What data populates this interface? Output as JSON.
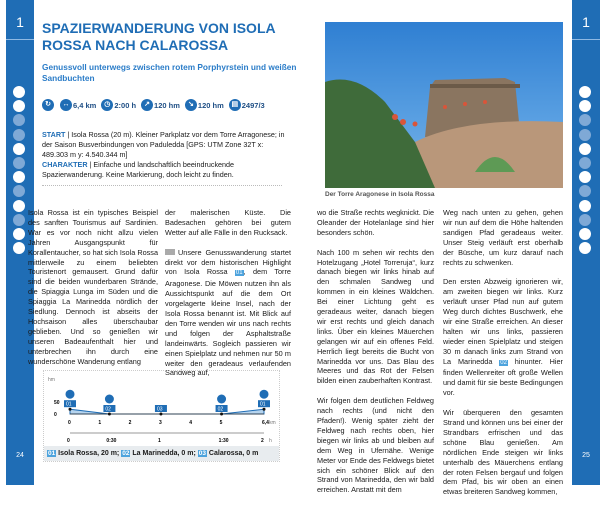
{
  "tour_number": "1",
  "page_left": "24",
  "page_right": "25",
  "colors": {
    "brand": "#1f6db5",
    "accent": "#4da3dd"
  },
  "feature_icons": [
    {
      "name": "child-friendly-icon",
      "active": true
    },
    {
      "name": "parking-icon",
      "active": true
    },
    {
      "name": "bus-icon",
      "active": false
    },
    {
      "name": "cable-car-icon",
      "active": false
    },
    {
      "name": "restaurant-icon",
      "active": true
    },
    {
      "name": "hut-icon",
      "active": false
    },
    {
      "name": "winter-icon",
      "active": true
    },
    {
      "name": "dog-icon",
      "active": false
    },
    {
      "name": "closed-road-icon",
      "active": true
    },
    {
      "name": "trash-icon",
      "active": false
    },
    {
      "name": "water-icon",
      "active": true
    },
    {
      "name": "swimming-icon",
      "active": true
    }
  ],
  "title": "SPAZIERWANDERUNG VON ISOLA ROSSA NACH CALAROSSA",
  "subtitle": "Genussvoll unterwegs zwischen rotem Porphyrstein und weißen Sandbuchten",
  "stats": [
    {
      "icon": "loop-icon",
      "value": ""
    },
    {
      "icon": "distance-icon",
      "value": "6,4 km"
    },
    {
      "icon": "clock-icon",
      "value": "2:00 h"
    },
    {
      "icon": "ascent-icon",
      "value": "120 hm"
    },
    {
      "icon": "descent-icon",
      "value": "120 hm"
    },
    {
      "icon": "map-icon",
      "value": "2497/3"
    }
  ],
  "info": {
    "start_label": "START",
    "start_text": " | Isola Rossa (20 m). Kleiner Parkplatz vor dem Torre Arragonese; in der Saison Busverbindungen von Paduledda [GPS: UTM Zone 32T x: 489.303 m y: 4.540.344 m]",
    "char_label": "CHARAKTER",
    "char_text": " | Einfache und landschaftlich beeindruckende Spazierwanderung. Keine Markierung, doch leicht zu finden."
  },
  "text": {
    "l1": "Isola Rossa ist ein typisches Beispiel des sanften Tourismus auf Sardinien. War es vor noch nicht allzu vielen Jahren Ausgangspunkt für Korallentaucher, so hat sich Isola Rossa mittlerweile zu einem beliebten Touristenort gemausert. Grund dafür sind die beiden wunderbaren Strände, die Spiaggia Lunga im Süden und die Spiaggia La Marinedda nördlich der Siedlung. Dennoch ist abseits der Hochsaison alles überschaubar geblieben. Und so genießen wir unseren Badeaufenthalt hier und unterbrechen ihn durch eine wunderschöne Wanderung entlang",
    "l2a": "der malerischen Küste. Die Badesachen gehören bei gutem Wetter auf alle Fälle in den Rucksack.",
    "l2b_1": "Unsere Genusswanderung startet direkt vor dem historischen Highlight von Isola Rossa ",
    "l2b_wp": "01",
    "l2b_2": ", dem Torre Aragonese. Die Möwen nutzen ihn als Aussichtspunkt auf die dem Ort vorgelagerte kleine Insel, nach der Isola Rossa benannt ist. Mit Blick auf den Torre wenden wir uns nach rechts und folgen der Asphaltstraße landeinwärts. Sogleich passieren wir einen Spielplatz und nehmen nur 50 m weiter den geradeaus verlaufenden Sandweg auf,",
    "r1a": "wo die Straße rechts wegknickt. Die Oleander der Hotelanlage sind hier besonders schön.",
    "r1b": "Nach 100 m sehen wir rechts den Hotelzugang „Hotel Torreruja“, kurz danach biegen wir links hinab auf den schmalen Sandweg und kommen in ein kleines Wäldchen. Bei einer Lichtung geht es geradeaus weiter, danach biegen wir erst rechts und gleich danach links. Über ein kleines Mäuerchen gelangen wir auf ein offenes Feld. Herrlich liegt bereits die Bucht von Marinedda vor uns. Das Blau des Meeres und das Rot der Felsen bilden einen zauberhaften Kontrast.",
    "r1c": "Wir folgen dem deutlichen Feldweg nach rechts (und nicht den Pfaden!). Wenig später zieht der Feldweg nach rechts oben, hier biegen wir links ab und bleiben auf dem Weg in Ufernähe. Wenige Meter vor Ende des Feldwegs bietet sich ein schöner Blick auf den Strand von Marinedda, den wir bald erreichen. Anstatt mit dem",
    "r2a": "Weg nach unten zu gehen, gehen wir nun auf dem die Höhe haltenden sandigen Pfad geradeaus weiter. Unser Steig verläuft erst oberhalb der Büsche, um kurz darauf nach rechts zu schwenken.",
    "r2b_1": "Den ersten Abzweig ignorieren wir, am zweiten biegen wir links. Kurz verläuft unser Pfad nun auf gutem Weg durch dichtes Buschwerk, ehe wir eine Straße erreichen. An dieser halten wir uns links, passieren wieder einen Spielplatz und steigen 30 m danach links zum Strand von La Marinedda ",
    "r2b_wp": "02",
    "r2b_2": " hinunter. Hier finden Wellenreiter oft große Wellen und damit für sie beste Bedingungen vor.",
    "r2c": "Wir überqueren den gesamten Strand und können uns bei einer der Strandbars erfrischen und das schöne Blau genießen. Am nördlichen Ende steigen wir links unterhalb des Mäuerchens entlang der roten Felsen bergauf und folgen dem Pfad, bis wir oben an einen etwas breiteren Sandweg kommen,"
  },
  "photo_caption": "Der Torre Aragonese in Isola Rossa",
  "chart_data": {
    "type": "area",
    "ylabel": "hm",
    "xunit": "km",
    "tunit": "h",
    "yticks": [
      "50",
      "0"
    ],
    "xticks": [
      "0",
      "1",
      "2",
      "3",
      "4",
      "5",
      "6,4"
    ],
    "tticks": [
      "0",
      "0:30",
      "1",
      "1:30",
      "2"
    ],
    "tticks_km": [
      0,
      1.3,
      3,
      5,
      6.4
    ],
    "xlim": [
      0,
      6.4
    ],
    "ylim": [
      0,
      60
    ],
    "points": [
      {
        "km": 0,
        "m": 20
      },
      {
        "km": 1.3,
        "m": 0
      },
      {
        "km": 3,
        "m": 0
      },
      {
        "km": 5,
        "m": 0
      },
      {
        "km": 6.4,
        "m": 20
      }
    ],
    "waypoints": [
      {
        "km": 0,
        "id": "01",
        "icon": "restaurant-icon"
      },
      {
        "km": 1.3,
        "id": "02",
        "icon": "restaurant-icon"
      },
      {
        "km": 3,
        "id": "03"
      },
      {
        "km": 5,
        "id": "02",
        "icon": "restaurant-icon"
      },
      {
        "km": 6.4,
        "id": "01",
        "icon": "restaurant-icon"
      }
    ],
    "legend": [
      {
        "id": "01",
        "text": "Isola Rossa, 20 m; "
      },
      {
        "id": "02",
        "text": "La Marinedda, 0 m; "
      },
      {
        "id": "03",
        "text": "Calarossa, 0 m"
      }
    ]
  }
}
